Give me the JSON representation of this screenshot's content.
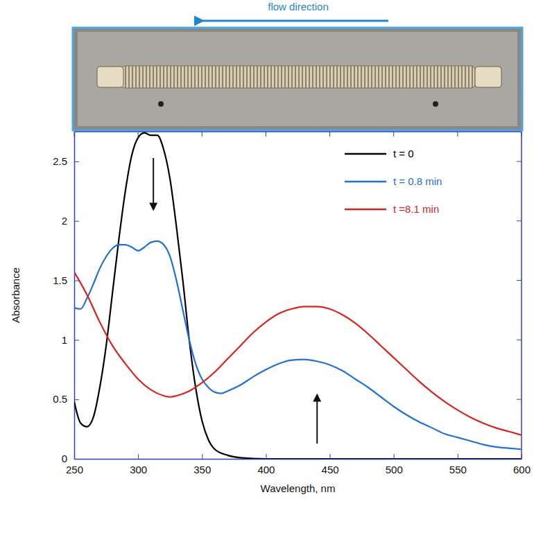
{
  "chart_data": {
    "type": "line",
    "annotation": "flow direction",
    "x_label": "Wavelength, nm",
    "y_label": "Absorbance",
    "xlim": [
      250,
      600
    ],
    "xticks": [
      250,
      300,
      350,
      400,
      450,
      500,
      550,
      600
    ],
    "ylim": [
      0,
      2.75
    ],
    "yticks": [
      0,
      0.5,
      1,
      1.5,
      2,
      2.5
    ],
    "legend": "top-right",
    "series": [
      {
        "name": "t = 0",
        "color": "#000000",
        "x": [
          250,
          255,
          260,
          265,
          270,
          275,
          280,
          285,
          290,
          295,
          300,
          305,
          310,
          315,
          320,
          325,
          330,
          335,
          340,
          345,
          350,
          355,
          360,
          370,
          380,
          400,
          450,
          500,
          550,
          600
        ],
        "values": [
          0.48,
          0.3,
          0.27,
          0.35,
          0.6,
          0.95,
          1.4,
          1.85,
          2.25,
          2.55,
          2.7,
          2.74,
          2.72,
          2.72,
          2.6,
          2.35,
          1.95,
          1.5,
          1.0,
          0.6,
          0.32,
          0.16,
          0.08,
          0.03,
          0.01,
          0,
          0,
          0,
          0,
          0
        ]
      },
      {
        "name": "t = 0.8 min",
        "color": "#1e6fe0",
        "x": [
          250,
          255,
          260,
          265,
          270,
          275,
          280,
          285,
          290,
          295,
          300,
          305,
          310,
          315,
          320,
          325,
          330,
          335,
          340,
          345,
          350,
          355,
          360,
          365,
          370,
          380,
          390,
          400,
          410,
          420,
          430,
          440,
          450,
          460,
          470,
          480,
          490,
          500,
          510,
          520,
          530,
          540,
          550,
          560,
          570,
          580,
          590,
          600
        ],
        "values": [
          1.27,
          1.26,
          1.35,
          1.47,
          1.6,
          1.7,
          1.77,
          1.8,
          1.8,
          1.78,
          1.75,
          1.78,
          1.82,
          1.83,
          1.8,
          1.7,
          1.5,
          1.25,
          1.0,
          0.8,
          0.67,
          0.6,
          0.56,
          0.55,
          0.57,
          0.62,
          0.69,
          0.75,
          0.8,
          0.83,
          0.835,
          0.82,
          0.79,
          0.74,
          0.67,
          0.6,
          0.52,
          0.44,
          0.37,
          0.31,
          0.26,
          0.21,
          0.18,
          0.15,
          0.12,
          0.1,
          0.09,
          0.08
        ]
      },
      {
        "name": "t =8.1 min",
        "color": "#e0201c",
        "x": [
          250,
          260,
          270,
          280,
          290,
          300,
          310,
          320,
          325,
          330,
          340,
          350,
          360,
          370,
          380,
          390,
          400,
          410,
          420,
          430,
          440,
          450,
          460,
          470,
          480,
          490,
          500,
          510,
          520,
          530,
          540,
          550,
          560,
          570,
          580,
          590,
          600
        ],
        "values": [
          1.57,
          1.38,
          1.15,
          0.95,
          0.8,
          0.67,
          0.58,
          0.53,
          0.52,
          0.53,
          0.57,
          0.64,
          0.73,
          0.84,
          0.95,
          1.06,
          1.15,
          1.22,
          1.26,
          1.28,
          1.28,
          1.26,
          1.21,
          1.14,
          1.05,
          0.95,
          0.85,
          0.75,
          0.65,
          0.56,
          0.48,
          0.41,
          0.35,
          0.3,
          0.26,
          0.23,
          0.2
        ]
      }
    ]
  }
}
